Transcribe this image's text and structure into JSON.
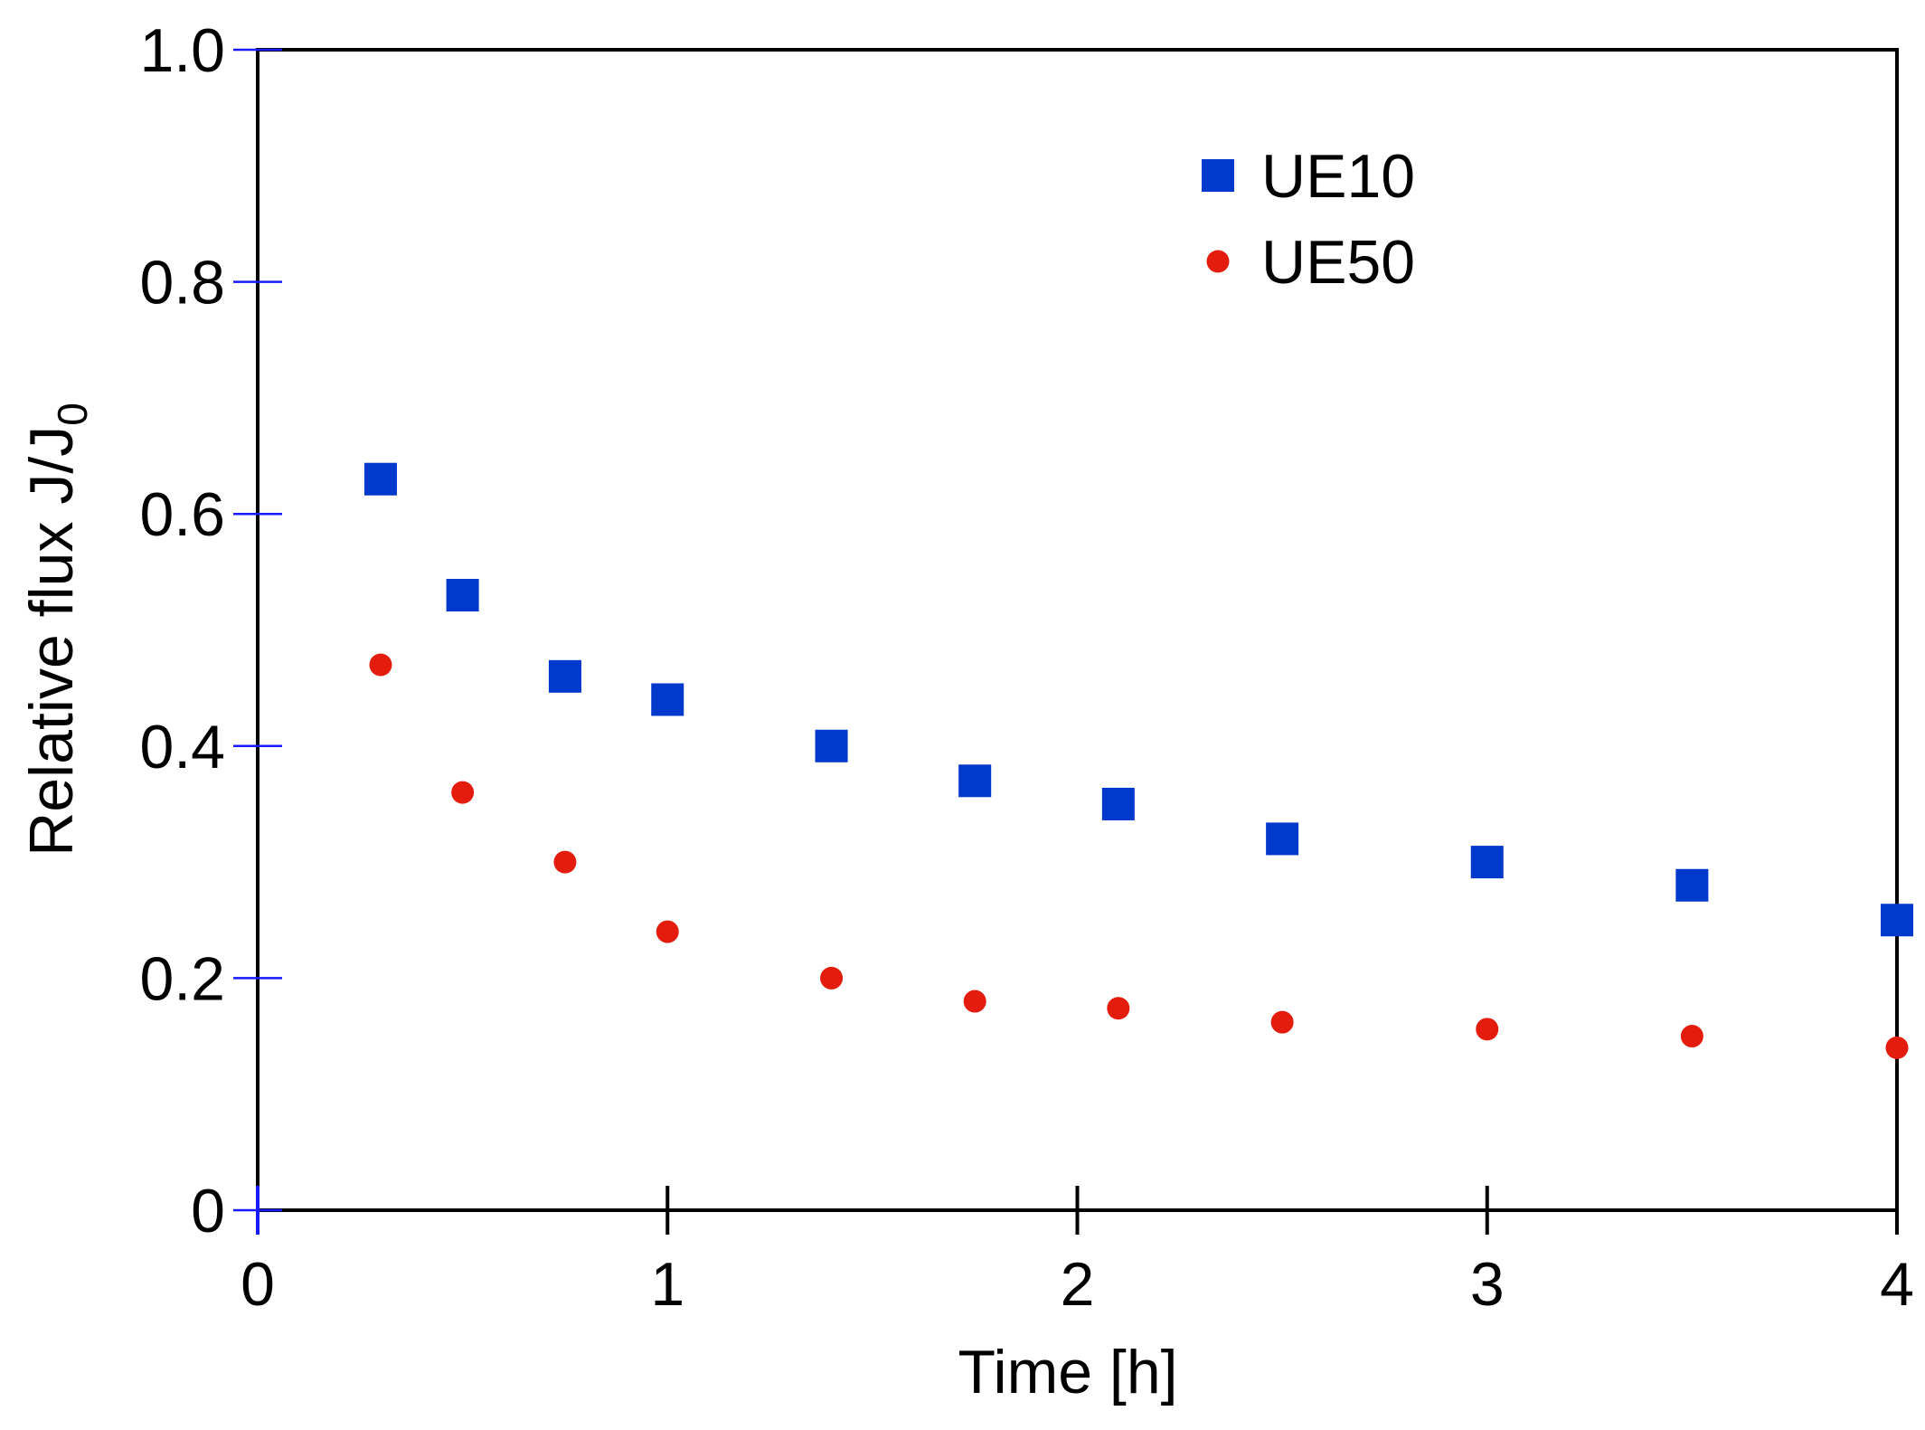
{
  "chart_data": {
    "type": "scatter",
    "xlabel": "Time [h]",
    "ylabel": "Relative flux J/J",
    "ylabel_subscript": "0",
    "xlim": [
      0,
      4
    ],
    "xticks": [
      0,
      1,
      2,
      3,
      4
    ],
    "ylim": [
      0,
      1
    ],
    "yticks": [
      0,
      0.2,
      0.4,
      0.6,
      0.8,
      {
        "value": 1,
        "label": "1.0"
      }
    ],
    "legend": "upper-right",
    "series": [
      {
        "name": "UE10",
        "color": "#0039cc",
        "marker": "square",
        "x": [
          0.3,
          0.5,
          0.75,
          1,
          1.4,
          1.75,
          2.1,
          2.5,
          3,
          3.5,
          4
        ],
        "values": [
          0.63,
          0.53,
          0.46,
          0.44,
          0.4,
          0.37,
          0.35,
          0.32,
          0.3,
          0.28,
          0.25
        ]
      },
      {
        "name": "UE50",
        "color": "#e31c0e",
        "marker": "circle",
        "x": [
          0.3,
          0.5,
          0.75,
          1,
          1.4,
          1.75,
          2.1,
          2.5,
          3,
          3.5,
          4
        ],
        "values": [
          0.47,
          0.36,
          0.3,
          0.24,
          0.2,
          0.18,
          0.174,
          0.162,
          0.156,
          0.15,
          0.14
        ]
      }
    ]
  }
}
